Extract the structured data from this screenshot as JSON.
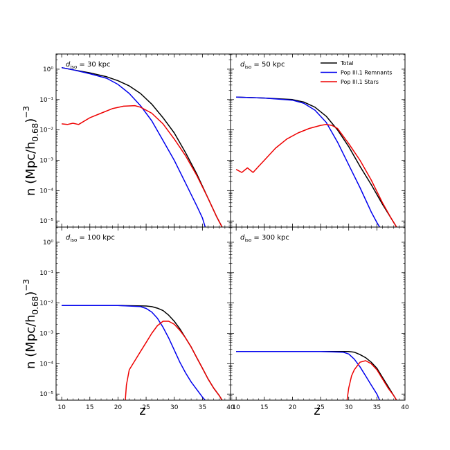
{
  "figure": {
    "ylabel_main": "n (Mpc/h",
    "ylabel_sub": "0.68",
    "ylabel_tail": ")",
    "ylabel_exp": "−3",
    "xlabel": "z"
  },
  "legend": {
    "entries": [
      {
        "label": "Total",
        "color": "#000000"
      },
      {
        "label": "Pop III.1 Remnants",
        "color": "#0000ee"
      },
      {
        "label": "Pop III.1 Stars",
        "color": "#ee0000"
      }
    ]
  },
  "colors": {
    "total": "#000000",
    "remnants": "#0000ee",
    "stars": "#ee0000"
  },
  "chart_data": [
    {
      "type": "line",
      "title_prefix": "d",
      "title_sub": "iso",
      "title_value": "= 30 kpc",
      "xlim": [
        9,
        40
      ],
      "ylim_exp": [
        -5.2,
        0.5
      ],
      "xticks": [
        10,
        15,
        20,
        25,
        30,
        35,
        40
      ],
      "yticks": [
        "10⁰",
        "10⁻¹",
        "10⁻²",
        "10⁻³",
        "10⁻⁴",
        "10⁻⁵"
      ],
      "series": [
        {
          "name": "Total",
          "x": [
            10,
            12,
            15,
            18,
            20,
            22,
            24,
            26,
            28,
            30,
            32,
            34,
            36,
            37.5,
            38.5
          ],
          "log10_y": [
            0.05,
            -0.02,
            -0.12,
            -0.25,
            -0.38,
            -0.55,
            -0.8,
            -1.15,
            -1.6,
            -2.1,
            -2.75,
            -3.45,
            -4.25,
            -4.85,
            -5.2
          ]
        },
        {
          "name": "Pop III.1 Remnants",
          "x": [
            10,
            12,
            15,
            18,
            20,
            22,
            24,
            26,
            28,
            30,
            32,
            34,
            35,
            35.5
          ],
          "log10_y": [
            0.05,
            -0.02,
            -0.15,
            -0.3,
            -0.5,
            -0.8,
            -1.2,
            -1.7,
            -2.35,
            -3.0,
            -3.75,
            -4.5,
            -4.9,
            -5.2
          ]
        },
        {
          "name": "Pop III.1 Stars",
          "x": [
            10,
            11,
            12,
            13,
            15,
            17,
            19,
            21,
            23,
            24,
            26,
            28,
            30,
            32,
            34,
            36,
            37.5,
            38.5
          ],
          "log10_y": [
            -1.8,
            -1.82,
            -1.78,
            -1.82,
            -1.6,
            -1.45,
            -1.3,
            -1.22,
            -1.2,
            -1.25,
            -1.45,
            -1.8,
            -2.3,
            -2.85,
            -3.5,
            -4.25,
            -4.85,
            -5.2
          ]
        }
      ]
    },
    {
      "type": "line",
      "title_prefix": "d",
      "title_sub": "iso",
      "title_value": "= 50 kpc",
      "xlim": [
        9,
        40
      ],
      "ylim_exp": [
        -5.2,
        0.5
      ],
      "xticks": [
        10,
        15,
        20,
        25,
        30,
        35,
        40
      ],
      "yticks": [
        "10⁰",
        "10⁻¹",
        "10⁻²",
        "10⁻³",
        "10⁻⁴",
        "10⁻⁵"
      ],
      "series": [
        {
          "name": "Total",
          "x": [
            10,
            15,
            20,
            22,
            24,
            26,
            28,
            30,
            32,
            34,
            36,
            37.5,
            38.5
          ],
          "log10_y": [
            -0.92,
            -0.95,
            -1.0,
            -1.08,
            -1.25,
            -1.55,
            -2.0,
            -2.55,
            -3.2,
            -3.8,
            -4.45,
            -4.9,
            -5.2
          ]
        },
        {
          "name": "Pop III.1 Remnants",
          "x": [
            10,
            15,
            20,
            22,
            24,
            26,
            28,
            30,
            32,
            33,
            34,
            35,
            35.5
          ],
          "log10_y": [
            -0.92,
            -0.95,
            -1.02,
            -1.12,
            -1.35,
            -1.75,
            -2.4,
            -3.15,
            -3.9,
            -4.3,
            -4.7,
            -5.05,
            -5.2
          ]
        },
        {
          "name": "Pop III.1 Stars",
          "x": [
            10,
            11,
            12,
            13,
            14,
            15,
            17,
            19,
            21,
            23,
            25,
            26,
            27,
            28,
            30,
            32,
            34,
            36,
            37.5,
            38.5
          ],
          "log10_y": [
            -3.3,
            -3.4,
            -3.25,
            -3.4,
            -3.2,
            -3.0,
            -2.6,
            -2.3,
            -2.1,
            -1.95,
            -1.85,
            -1.82,
            -1.85,
            -1.95,
            -2.45,
            -3.0,
            -3.65,
            -4.4,
            -4.9,
            -5.2
          ]
        }
      ]
    },
    {
      "type": "line",
      "title_prefix": "d",
      "title_sub": "iso",
      "title_value": "= 100 kpc",
      "xlim": [
        9,
        40
      ],
      "ylim_exp": [
        -5.2,
        0.5
      ],
      "xticks": [
        10,
        15,
        20,
        25,
        30,
        35,
        40
      ],
      "yticks": [
        "10⁰",
        "10⁻¹",
        "10⁻²",
        "10⁻³",
        "10⁻⁴",
        "10⁻⁵"
      ],
      "series": [
        {
          "name": "Total",
          "x": [
            10,
            15,
            20,
            25,
            26,
            27,
            28,
            29,
            30,
            31,
            32,
            33,
            34,
            35,
            36,
            37,
            38,
            38.5
          ],
          "log10_y": [
            -2.08,
            -2.08,
            -2.08,
            -2.1,
            -2.12,
            -2.17,
            -2.25,
            -2.4,
            -2.6,
            -2.85,
            -3.15,
            -3.45,
            -3.8,
            -4.15,
            -4.5,
            -4.8,
            -5.05,
            -5.2
          ]
        },
        {
          "name": "Pop III.1 Remnants",
          "x": [
            10,
            15,
            20,
            24,
            25,
            26,
            27,
            28,
            29,
            30,
            31,
            32,
            33,
            34,
            35,
            35.5
          ],
          "log10_y": [
            -2.08,
            -2.08,
            -2.08,
            -2.12,
            -2.18,
            -2.3,
            -2.5,
            -2.8,
            -3.15,
            -3.55,
            -3.95,
            -4.3,
            -4.6,
            -4.85,
            -5.1,
            -5.2
          ]
        },
        {
          "name": "Pop III.1 Stars",
          "x": [
            21.3,
            21.5,
            22,
            23,
            24,
            25,
            26,
            27,
            28,
            29,
            30,
            31,
            32,
            33,
            34,
            35,
            36,
            37,
            38,
            38.5
          ],
          "log10_y": [
            -5.2,
            -4.7,
            -4.2,
            -3.9,
            -3.6,
            -3.3,
            -3.0,
            -2.75,
            -2.6,
            -2.6,
            -2.7,
            -2.9,
            -3.15,
            -3.45,
            -3.8,
            -4.15,
            -4.5,
            -4.8,
            -5.05,
            -5.2
          ]
        }
      ]
    },
    {
      "type": "line",
      "title_prefix": "d",
      "title_sub": "iso",
      "title_value": "= 300 kpc",
      "xlim": [
        9,
        40
      ],
      "ylim_exp": [
        -5.2,
        0.5
      ],
      "xticks": [
        10,
        15,
        20,
        25,
        30,
        35,
        40
      ],
      "yticks": [
        "10⁰",
        "10⁻¹",
        "10⁻²",
        "10⁻³",
        "10⁻⁴",
        "10⁻⁵"
      ],
      "series": [
        {
          "name": "Total",
          "x": [
            10,
            15,
            20,
            25,
            30,
            31,
            32,
            33,
            34,
            35,
            36,
            37,
            38,
            38.5
          ],
          "log10_y": [
            -3.6,
            -3.6,
            -3.6,
            -3.6,
            -3.6,
            -3.62,
            -3.7,
            -3.8,
            -3.95,
            -4.15,
            -4.45,
            -4.75,
            -5.05,
            -5.2
          ]
        },
        {
          "name": "Pop III.1 Remnants",
          "x": [
            10,
            15,
            20,
            25,
            29,
            30,
            31,
            32,
            33,
            34,
            35,
            35.5
          ],
          "log10_y": [
            -3.6,
            -3.6,
            -3.6,
            -3.6,
            -3.62,
            -3.68,
            -3.85,
            -4.1,
            -4.4,
            -4.7,
            -5.0,
            -5.2
          ]
        },
        {
          "name": "Pop III.1 Stars",
          "x": [
            29.7,
            30,
            30.5,
            31,
            32,
            33,
            34,
            35,
            36,
            37,
            38,
            38.5
          ],
          "log10_y": [
            -5.2,
            -4.8,
            -4.4,
            -4.2,
            -3.95,
            -3.9,
            -4.0,
            -4.2,
            -4.5,
            -4.8,
            -5.05,
            -5.2
          ]
        }
      ]
    }
  ]
}
